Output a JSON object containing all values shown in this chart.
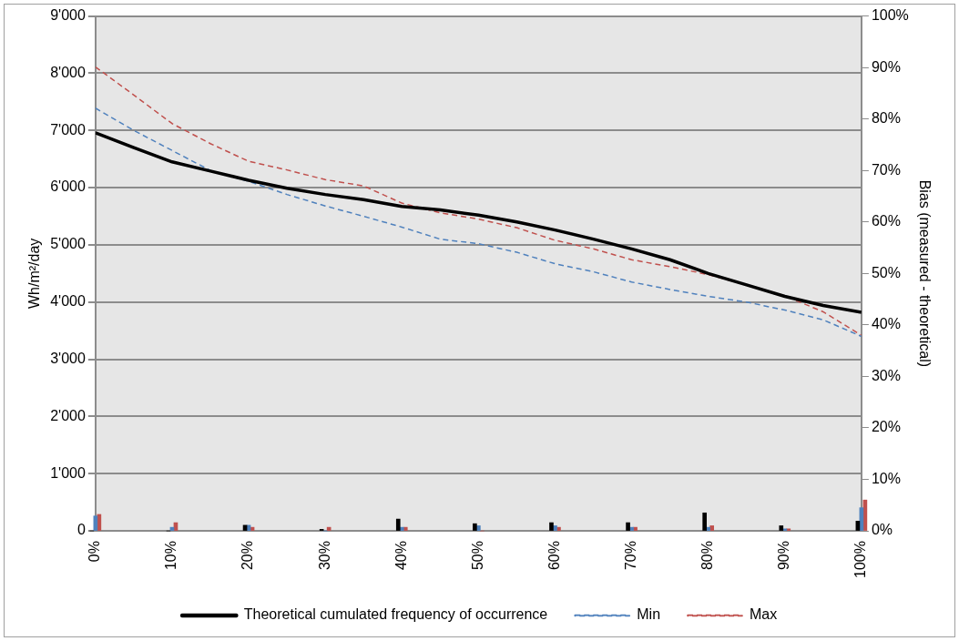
{
  "chart_data": {
    "type": "line",
    "ylabel": "Wh/m²/day",
    "y2label": "Bias (measured - theoretical)",
    "x": [
      0,
      5,
      10,
      15,
      20,
      25,
      30,
      35,
      40,
      45,
      50,
      55,
      60,
      65,
      70,
      75,
      80,
      85,
      90,
      95,
      100
    ],
    "xlim": [
      0,
      100
    ],
    "xticks": [
      {
        "value": 0,
        "label": "0%"
      },
      {
        "value": 10,
        "label": "10%"
      },
      {
        "value": 20,
        "label": "20%"
      },
      {
        "value": 30,
        "label": "30%"
      },
      {
        "value": 40,
        "label": "40%"
      },
      {
        "value": 50,
        "label": "50%"
      },
      {
        "value": 60,
        "label": "60%"
      },
      {
        "value": 70,
        "label": "70%"
      },
      {
        "value": 80,
        "label": "80%"
      },
      {
        "value": 90,
        "label": "90%"
      },
      {
        "value": 100,
        "label": "100%"
      }
    ],
    "ylim": [
      0,
      9000
    ],
    "yticks": [
      0,
      {
        "value": 1000,
        "label": "1'000"
      },
      {
        "value": 2000,
        "label": "2'000"
      },
      {
        "value": 3000,
        "label": "3'000"
      },
      {
        "value": 4000,
        "label": "4'000"
      },
      {
        "value": 5000,
        "label": "5'000"
      },
      {
        "value": 6000,
        "label": "6'000"
      },
      {
        "value": 7000,
        "label": "7'000"
      },
      {
        "value": 8000,
        "label": "8'000"
      },
      {
        "value": 9000,
        "label": "9'000"
      }
    ],
    "y2lim": [
      0,
      100
    ],
    "y2ticks": [
      {
        "value": 0,
        "label": "0%"
      },
      {
        "value": 10,
        "label": "10%"
      },
      {
        "value": 20,
        "label": "20%"
      },
      {
        "value": 30,
        "label": "30%"
      },
      {
        "value": 40,
        "label": "40%"
      },
      {
        "value": 50,
        "label": "50%"
      },
      {
        "value": 60,
        "label": "60%"
      },
      {
        "value": 70,
        "label": "70%"
      },
      {
        "value": 80,
        "label": "80%"
      },
      {
        "value": 90,
        "label": "90%"
      },
      {
        "value": 100,
        "label": "100%"
      }
    ],
    "grid": "y",
    "legend": "bottom",
    "marker": "none",
    "series": [
      {
        "name": "Theoretical cumulated frequency of occurrence",
        "color": "#000000",
        "line_style": "solid",
        "values": [
          6960,
          6700,
          6450,
          6290,
          6130,
          5990,
          5880,
          5790,
          5670,
          5610,
          5520,
          5400,
          5260,
          5100,
          4930,
          4740,
          4500,
          4300,
          4100,
          3940,
          3820
        ]
      },
      {
        "name": "Min",
        "color": "#4f81bd",
        "line_style": "dashed",
        "values": [
          7390,
          7000,
          6650,
          6300,
          6110,
          5880,
          5680,
          5500,
          5310,
          5100,
          5020,
          4870,
          4670,
          4530,
          4350,
          4220,
          4100,
          4000,
          3860,
          3690,
          3400
        ]
      },
      {
        "name": "Max",
        "color": "#c0504d",
        "line_style": "dashed",
        "values": [
          8110,
          7620,
          7120,
          6770,
          6460,
          6310,
          6140,
          6030,
          5730,
          5560,
          5450,
          5300,
          5080,
          4930,
          4740,
          4620,
          4480,
          4300,
          4110,
          3830,
          3420
        ]
      },
      {
        "type": "bar",
        "axis": "y2",
        "color": "#000000",
        "x": [
          0,
          10,
          20,
          30,
          40,
          50,
          60,
          70,
          80,
          90,
          100
        ],
        "values": [
          0,
          0,
          1.1,
          0.3,
          2.3,
          1.4,
          1.6,
          1.6,
          3.5,
          1.0,
          1.9
        ]
      },
      {
        "type": "bar",
        "axis": "y2",
        "color": "#4f81bd",
        "x": [
          0,
          10,
          20,
          30,
          40,
          50,
          60,
          70,
          80,
          90,
          100
        ],
        "values": [
          2.9,
          0.7,
          1.1,
          0,
          0.7,
          1.0,
          1.0,
          0.7,
          0.7,
          0.4,
          4.5
        ]
      },
      {
        "type": "bar",
        "axis": "y2",
        "color": "#c0504d",
        "x": [
          0,
          10,
          20,
          30,
          40,
          50,
          60,
          70,
          80,
          90,
          100
        ],
        "values": [
          3.2,
          1.6,
          0.7,
          0.7,
          0.7,
          0,
          0.7,
          0.7,
          1.0,
          0.4,
          6.0
        ]
      }
    ]
  }
}
